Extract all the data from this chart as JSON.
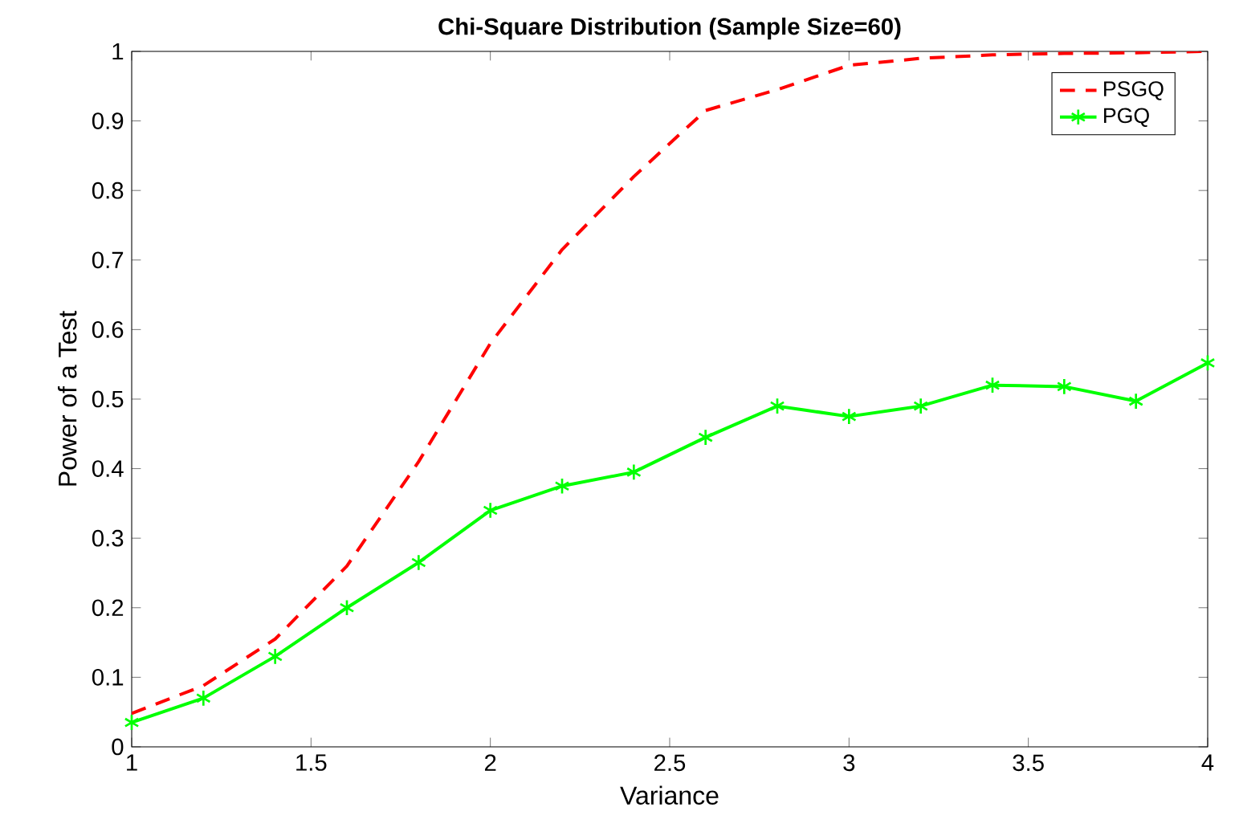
{
  "chart_data": {
    "type": "line",
    "title": "Chi-Square Distribution (Sample Size=60)",
    "xlabel": "Variance",
    "ylabel": "Power of a Test",
    "x": [
      1,
      1.2,
      1.4,
      1.6,
      1.8,
      2,
      2.2,
      2.4,
      2.6,
      2.8,
      3,
      3.2,
      3.4,
      3.6,
      3.8,
      4
    ],
    "series": [
      {
        "name": "PSGQ",
        "color": "#ff0000",
        "line_style": "dashed",
        "marker": "none",
        "values": [
          0.048,
          0.088,
          0.155,
          0.26,
          0.41,
          0.58,
          0.715,
          0.82,
          0.915,
          0.945,
          0.98,
          0.99,
          0.995,
          0.997,
          0.998,
          1.0
        ]
      },
      {
        "name": "PGQ",
        "color": "#00ff00",
        "line_style": "solid",
        "marker": "cross",
        "values": [
          0.035,
          0.07,
          0.13,
          0.2,
          0.265,
          0.34,
          0.375,
          0.395,
          0.445,
          0.49,
          0.475,
          0.49,
          0.52,
          0.518,
          0.497,
          0.552
        ]
      }
    ],
    "xlim": [
      1,
      4
    ],
    "ylim": [
      0,
      1
    ],
    "xticks": [
      1,
      1.5,
      2,
      2.5,
      3,
      3.5,
      4
    ],
    "yticks": [
      0,
      0.1,
      0.2,
      0.3,
      0.4,
      0.5,
      0.6,
      0.7,
      0.8,
      0.9,
      1
    ],
    "grid": false,
    "legend": "top right"
  }
}
